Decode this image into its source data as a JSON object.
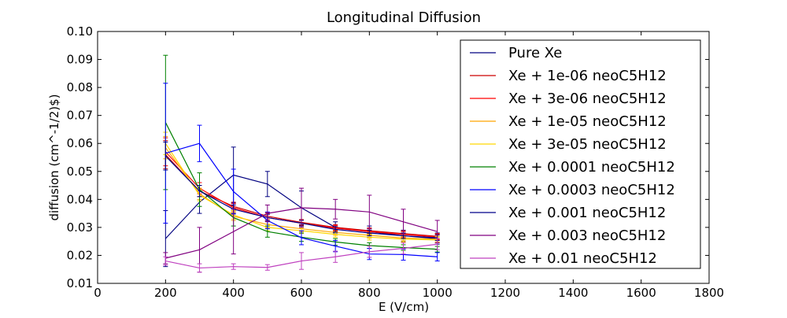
{
  "chart_data": {
    "type": "line",
    "title": "Longitudinal Diffusion",
    "xlabel": "E (V/cm)",
    "ylabel": "diffusion (cm^-1/2)$)",
    "xlim": [
      0,
      1800
    ],
    "ylim": [
      0.01,
      0.1
    ],
    "xticks": [
      "0",
      "200",
      "400",
      "600",
      "800",
      "1000",
      "1200",
      "1400",
      "1600",
      "1800"
    ],
    "yticks": [
      "0.01",
      "0.02",
      "0.03",
      "0.04",
      "0.05",
      "0.06",
      "0.07",
      "0.08",
      "0.09",
      "0.10"
    ],
    "grid": false,
    "legend_position": "top-right",
    "series": [
      {
        "name": "Pure Xe",
        "color": "#000080",
        "x": [
          200,
          300,
          400,
          500,
          600,
          700,
          800,
          900,
          1000
        ],
        "y": [
          0.026,
          0.039,
          0.0487,
          0.0455,
          0.037,
          0.03,
          0.0285,
          0.027,
          0.026
        ],
        "err": [
          0.01,
          0.004,
          0.01,
          0.0045,
          0.006,
          0.002,
          0.002,
          0.002,
          0.002
        ]
      },
      {
        "name": "Xe + 1e-06 neoC5H12",
        "color": "#cc0000",
        "x": [
          200,
          300,
          400,
          500,
          600,
          700,
          800,
          900,
          1000
        ],
        "y": [
          0.056,
          0.043,
          0.0375,
          0.034,
          0.0318,
          0.03,
          0.0288,
          0.0278,
          0.0268
        ],
        "err": [
          0.005,
          0.002,
          0.0015,
          0.0012,
          0.001,
          0.001,
          0.001,
          0.001,
          0.001
        ]
      },
      {
        "name": "Xe + 3e-06 neoC5H12",
        "color": "#ff0000",
        "x": [
          200,
          300,
          400,
          500,
          600,
          700,
          800,
          900,
          1000
        ],
        "y": [
          0.057,
          0.044,
          0.037,
          0.0335,
          0.0315,
          0.0297,
          0.0285,
          0.0275,
          0.0265
        ],
        "err": [
          0.005,
          0.002,
          0.0015,
          0.0012,
          0.001,
          0.001,
          0.001,
          0.001,
          0.001
        ]
      },
      {
        "name": "Xe + 1e-05 neoC5H12",
        "color": "#ffa500",
        "x": [
          200,
          300,
          400,
          500,
          600,
          700,
          800,
          900,
          1000
        ],
        "y": [
          0.0585,
          0.042,
          0.034,
          0.031,
          0.0295,
          0.0282,
          0.0272,
          0.0262,
          0.0258
        ],
        "err": [
          0.004,
          0.002,
          0.0015,
          0.0012,
          0.001,
          0.001,
          0.001,
          0.001,
          0.001
        ]
      },
      {
        "name": "Xe + 3e-05 neoC5H12",
        "color": "#ffd700",
        "x": [
          200,
          300,
          400,
          500,
          600,
          700,
          800,
          900,
          1000
        ],
        "y": [
          0.06,
          0.0415,
          0.0345,
          0.03,
          0.0288,
          0.0275,
          0.0265,
          0.0258,
          0.0255
        ],
        "err": [
          0.004,
          0.002,
          0.0015,
          0.0012,
          0.001,
          0.001,
          0.001,
          0.001,
          0.001
        ]
      },
      {
        "name": "Xe + 0.0001 neoC5H12",
        "color": "#008000",
        "x": [
          200,
          300,
          400,
          500,
          600,
          700,
          800,
          900,
          1000
        ],
        "y": [
          0.0675,
          0.0435,
          0.0335,
          0.0285,
          0.0265,
          0.0248,
          0.0235,
          0.0228,
          0.0222
        ],
        "err": [
          0.024,
          0.006,
          0.003,
          0.002,
          0.0015,
          0.0012,
          0.001,
          0.001,
          0.001
        ]
      },
      {
        "name": "Xe + 0.0003 neoC5H12",
        "color": "#0000ff",
        "x": [
          200,
          300,
          400,
          500,
          600,
          700,
          800,
          900,
          1000
        ],
        "y": [
          0.0565,
          0.06,
          0.0428,
          0.0325,
          0.0263,
          0.0233,
          0.0205,
          0.0203,
          0.0195
        ],
        "err": [
          0.025,
          0.0065,
          0.008,
          0.003,
          0.0025,
          0.002,
          0.002,
          0.002,
          0.0015
        ]
      },
      {
        "name": "Xe + 0.001 neoC5H12",
        "color": "#00008b",
        "x": [
          200,
          300,
          400,
          500,
          600,
          700,
          800,
          900,
          1000
        ],
        "y": [
          0.0555,
          0.043,
          0.0365,
          0.0335,
          0.0315,
          0.0293,
          0.028,
          0.027,
          0.0263
        ],
        "err": [
          0.005,
          0.002,
          0.0015,
          0.0012,
          0.001,
          0.001,
          0.001,
          0.001,
          0.001
        ]
      },
      {
        "name": "Xe + 0.003 neoC5H12",
        "color": "#800080",
        "x": [
          200,
          300,
          400,
          500,
          600,
          700,
          800,
          900,
          1000
        ],
        "y": [
          0.019,
          0.022,
          0.0285,
          0.035,
          0.037,
          0.0365,
          0.0355,
          0.032,
          0.0285
        ],
        "err": [
          0.002,
          0.008,
          0.008,
          0.003,
          0.007,
          0.0035,
          0.006,
          0.0045,
          0.004
        ]
      },
      {
        "name": "Xe + 0.01 neoC5H12",
        "color": "#bf40bf",
        "x": [
          200,
          300,
          400,
          500,
          600,
          700,
          800,
          900,
          1000
        ],
        "y": [
          0.018,
          0.0155,
          0.016,
          0.0157,
          0.018,
          0.0195,
          0.0213,
          0.0225,
          0.024
        ],
        "err": [
          0.0015,
          0.0015,
          0.001,
          0.001,
          0.003,
          0.002,
          0.002,
          0.002,
          0.002
        ]
      }
    ]
  }
}
